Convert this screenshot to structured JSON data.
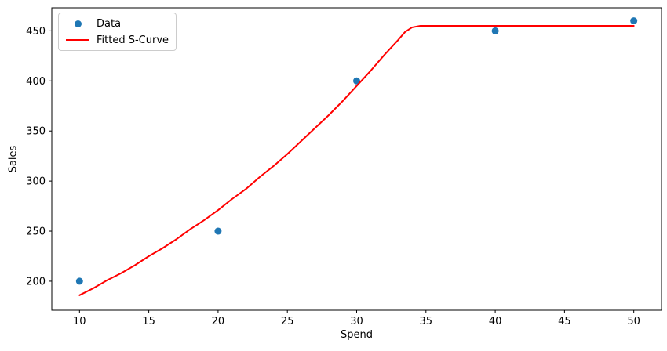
{
  "figure": {
    "background": "#ffffff",
    "axis_color": "#000000"
  },
  "chart_data": {
    "type": "scatter",
    "title": "",
    "xlabel": "Spend",
    "ylabel": "Sales",
    "xlim": [
      8,
      52
    ],
    "ylim": [
      171,
      473
    ],
    "xticks": [
      10,
      15,
      20,
      25,
      30,
      35,
      40,
      45,
      50
    ],
    "yticks": [
      200,
      250,
      300,
      350,
      400,
      450
    ],
    "grid": false,
    "legend_position": "upper left",
    "series": [
      {
        "name": "Data",
        "type": "scatter",
        "color": "#1f77b4",
        "points": [
          [
            10,
            200
          ],
          [
            20,
            250
          ],
          [
            30,
            400
          ],
          [
            40,
            450
          ],
          [
            50,
            460
          ]
        ]
      },
      {
        "name": "Fitted S-Curve",
        "type": "line",
        "color": "#ff0000",
        "saturation_level": 455,
        "points": [
          [
            10,
            186
          ],
          [
            11,
            193
          ],
          [
            12,
            201
          ],
          [
            13,
            208
          ],
          [
            14,
            216
          ],
          [
            15,
            225
          ],
          [
            16,
            233
          ],
          [
            17,
            242
          ],
          [
            18,
            252
          ],
          [
            19,
            261
          ],
          [
            20,
            271
          ],
          [
            21,
            282
          ],
          [
            22,
            292
          ],
          [
            23,
            304
          ],
          [
            24,
            315
          ],
          [
            25,
            327
          ],
          [
            26,
            340
          ],
          [
            27,
            353
          ],
          [
            28,
            366
          ],
          [
            29,
            380
          ],
          [
            30,
            395
          ],
          [
            31,
            410
          ],
          [
            32,
            426
          ],
          [
            33,
            441
          ],
          [
            33.5,
            449
          ],
          [
            34,
            453.5
          ],
          [
            34.6,
            455
          ],
          [
            36,
            455
          ],
          [
            38,
            455
          ],
          [
            40,
            455
          ],
          [
            42,
            455
          ],
          [
            44,
            455
          ],
          [
            46,
            455
          ],
          [
            48,
            455
          ],
          [
            50,
            455
          ]
        ]
      }
    ]
  }
}
